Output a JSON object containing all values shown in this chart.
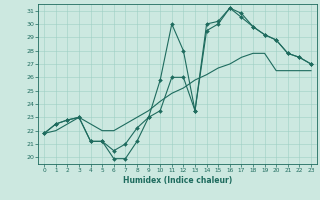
{
  "xlabel": "Humidex (Indice chaleur)",
  "background_color": "#cce8e0",
  "line_color": "#1e6b5e",
  "xlim": [
    -0.5,
    23.5
  ],
  "ylim": [
    19.5,
    31.5
  ],
  "xticks": [
    0,
    1,
    2,
    3,
    4,
    5,
    6,
    7,
    8,
    9,
    10,
    11,
    12,
    13,
    14,
    15,
    16,
    17,
    18,
    19,
    20,
    21,
    22,
    23
  ],
  "yticks": [
    20,
    21,
    22,
    23,
    24,
    25,
    26,
    27,
    28,
    29,
    30,
    31
  ],
  "line1_x": [
    0,
    1,
    2,
    3,
    4,
    5,
    6,
    7,
    8,
    9,
    10,
    11,
    12,
    13,
    14,
    15,
    16,
    17,
    18,
    19,
    20,
    21,
    22,
    23
  ],
  "line1_y": [
    21.8,
    22.5,
    22.8,
    23.0,
    21.2,
    21.2,
    19.9,
    19.9,
    21.2,
    23.0,
    23.5,
    26.0,
    26.0,
    23.5,
    29.5,
    30.0,
    31.2,
    30.8,
    29.8,
    29.2,
    28.8,
    27.8,
    27.5,
    27.0
  ],
  "line2_x": [
    0,
    1,
    2,
    3,
    4,
    5,
    6,
    7,
    8,
    9,
    10,
    11,
    12,
    13,
    14,
    15,
    16,
    17,
    18,
    19,
    20,
    21,
    22,
    23
  ],
  "line2_y": [
    21.8,
    22.5,
    22.8,
    23.0,
    21.2,
    21.2,
    20.5,
    21.0,
    22.2,
    23.0,
    25.8,
    30.0,
    28.0,
    23.5,
    30.0,
    30.2,
    31.2,
    30.5,
    29.8,
    29.2,
    28.8,
    27.8,
    27.5,
    27.0
  ],
  "line3_x": [
    0,
    1,
    2,
    3,
    4,
    5,
    6,
    7,
    8,
    9,
    10,
    11,
    12,
    13,
    14,
    15,
    16,
    17,
    18,
    19,
    20,
    21,
    22,
    23
  ],
  "line3_y": [
    21.8,
    22.0,
    22.5,
    23.0,
    22.5,
    22.0,
    22.0,
    22.5,
    23.0,
    23.5,
    24.2,
    24.8,
    25.2,
    25.8,
    26.2,
    26.7,
    27.0,
    27.5,
    27.8,
    27.8,
    26.5,
    26.5,
    26.5,
    26.5
  ]
}
